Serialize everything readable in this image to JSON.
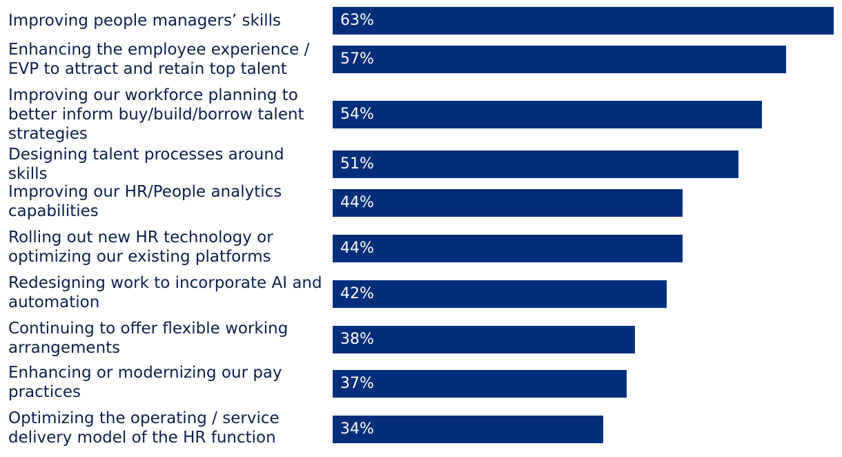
{
  "chart_data": {
    "type": "bar",
    "orientation": "horizontal",
    "title": "",
    "xlabel": "",
    "ylabel": "",
    "xlim": [
      0,
      63
    ],
    "value_suffix": "%",
    "bar_color": "#002e7a",
    "label_color": "#ffffff",
    "text_color": "#0b1f4a",
    "categories": [
      "Improving people managers’ skills",
      "Enhancing the employee experience / EVP to attract and retain top talent",
      "Improving our workforce planning to better inform buy/build/borrow talent strategies",
      "Designing talent processes around skills",
      "Improving our HR/People analytics capabilities",
      "Rolling out new HR technology or optimizing our existing platforms",
      "Redesigning work to incorporate AI and automation",
      "Continuing to offer flexible working arrangements",
      "Enhancing or modernizing our pay practices",
      "Optimizing the operating / service delivery model of the HR function"
    ],
    "values": [
      63,
      57,
      54,
      51,
      44,
      44,
      42,
      38,
      37,
      34
    ]
  }
}
